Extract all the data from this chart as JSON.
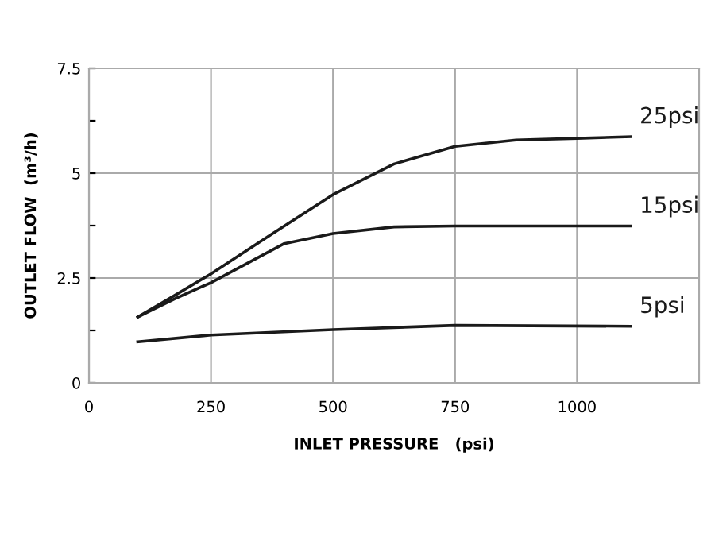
{
  "chart_data": {
    "type": "line",
    "xlabel": "INLET PRESSURE   (psi)",
    "ylabel": "OUTLET FLOW  (m³/h)",
    "xlim": [
      0,
      1250
    ],
    "ylim": [
      0,
      7.5
    ],
    "xticks": [
      0,
      250,
      500,
      750,
      1000
    ],
    "yticks": [
      0,
      {
        "value": 1.25,
        "label": null
      },
      2.5,
      {
        "value": 3.75,
        "label": null
      },
      5,
      {
        "value": 6.25,
        "label": null
      },
      7.5
    ],
    "grid": true,
    "legend": false,
    "marker": "none",
    "line_style": "solid",
    "series": [
      {
        "name": "25psi",
        "color": "#1a1a1a",
        "x": [
          100,
          175,
          250,
          375,
          500,
          625,
          750,
          875,
          1000,
          1110
        ],
        "values": [
          1.57,
          2.08,
          2.6,
          3.55,
          4.49,
          5.22,
          5.64,
          5.79,
          5.83,
          5.87
        ]
      },
      {
        "name": "15psi",
        "color": "#1a1a1a",
        "x": [
          100,
          175,
          250,
          400,
          500,
          625,
          750,
          1110
        ],
        "values": [
          1.57,
          2.0,
          2.39,
          3.32,
          3.56,
          3.72,
          3.74,
          3.74
        ]
      },
      {
        "name": "5psi",
        "color": "#1a1a1a",
        "x": [
          100,
          250,
          500,
          750,
          1110
        ],
        "values": [
          0.98,
          1.14,
          1.27,
          1.37,
          1.35
        ]
      }
    ]
  }
}
